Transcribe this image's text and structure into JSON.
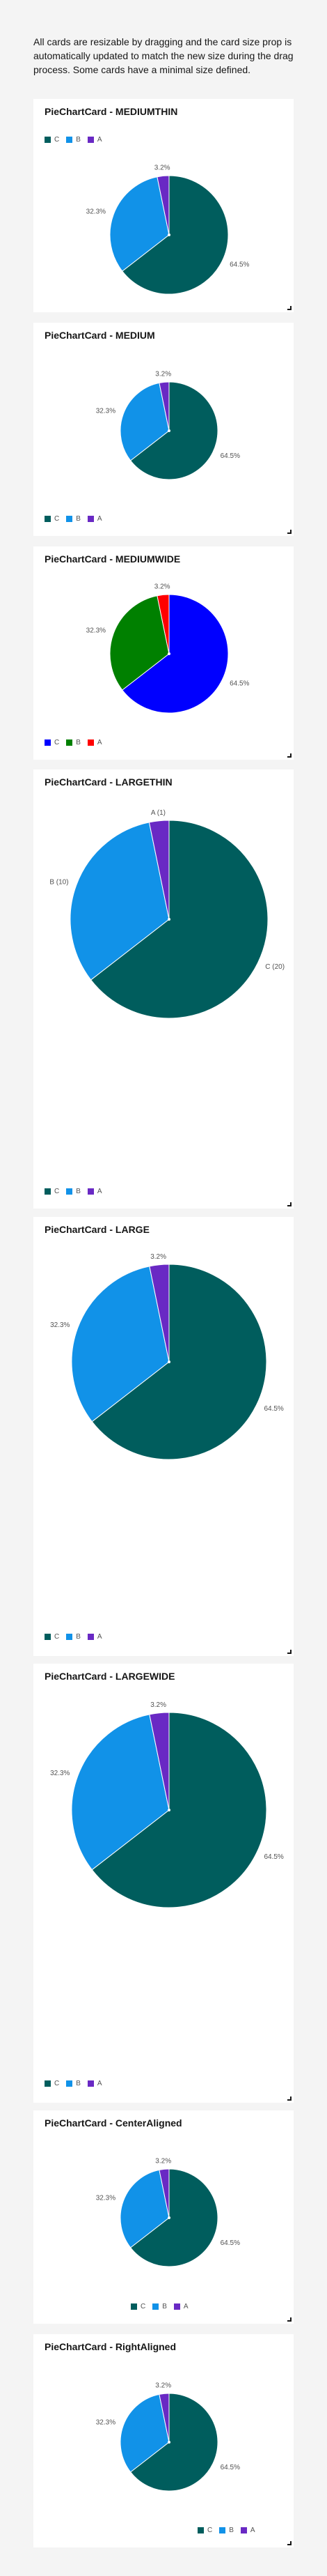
{
  "intro_text": "All cards are resizable by dragging and the card size prop is automatically updated to match the new size during the drag process. Some cards have a minimal size defined.",
  "colors": {
    "C": "#005d5d",
    "B": "#1192e8",
    "A": "#6929c4",
    "C_wide": "#0000ff",
    "B_wide": "#008000",
    "A_wide": "#ff0000"
  },
  "cards": [
    {
      "title": "PieChartCard - MEDIUMTHIN",
      "legend": [
        "C",
        "B",
        "A"
      ],
      "labels": [
        "64.5%",
        "32.3%",
        "3.2%"
      ]
    },
    {
      "title": "PieChartCard - MEDIUM",
      "legend": [
        "C",
        "B",
        "A"
      ],
      "labels": [
        "64.5%",
        "32.3%",
        "3.2%"
      ]
    },
    {
      "title": "PieChartCard - MEDIUMWIDE",
      "legend": [
        "C",
        "B",
        "A"
      ],
      "labels": [
        "64.5%",
        "32.3%",
        "3.2%"
      ]
    },
    {
      "title": "PieChartCard - LARGETHIN",
      "legend": [
        "C",
        "B",
        "A"
      ],
      "labels": [
        "C (20)",
        "B (10)",
        "A (1)"
      ]
    },
    {
      "title": "PieChartCard - LARGE",
      "legend": [
        "C",
        "B",
        "A"
      ],
      "labels": [
        "64.5%",
        "32.3%",
        "3.2%"
      ]
    },
    {
      "title": "PieChartCard - LARGEWIDE",
      "legend": [
        "C",
        "B",
        "A"
      ],
      "labels": [
        "64.5%",
        "32.3%",
        "3.2%"
      ]
    },
    {
      "title": "PieChartCard - CenterAligned",
      "legend": [
        "C",
        "B",
        "A"
      ],
      "labels": [
        "64.5%",
        "32.3%",
        "3.2%"
      ]
    },
    {
      "title": "PieChartCard - RightAligned",
      "legend": [
        "C",
        "B",
        "A"
      ],
      "labels": [
        "64.5%",
        "32.3%",
        "3.2%"
      ]
    }
  ],
  "chart_data": [
    {
      "type": "pie",
      "title": "PieChartCard - MEDIUMTHIN",
      "categories": [
        "C",
        "B",
        "A"
      ],
      "values": [
        20,
        10,
        1
      ],
      "legend": "bottom-left"
    },
    {
      "type": "pie",
      "title": "PieChartCard - MEDIUM",
      "categories": [
        "C",
        "B",
        "A"
      ],
      "values": [
        20,
        10,
        1
      ],
      "legend": "bottom-left"
    },
    {
      "type": "pie",
      "title": "PieChartCard - MEDIUMWIDE",
      "categories": [
        "C",
        "B",
        "A"
      ],
      "values": [
        20,
        10,
        1
      ],
      "legend": "bottom-left"
    },
    {
      "type": "pie",
      "title": "PieChartCard - LARGETHIN",
      "categories": [
        "C",
        "B",
        "A"
      ],
      "values": [
        20,
        10,
        1
      ],
      "legend": "bottom-left"
    },
    {
      "type": "pie",
      "title": "PieChartCard - LARGE",
      "categories": [
        "C",
        "B",
        "A"
      ],
      "values": [
        20,
        10,
        1
      ],
      "legend": "bottom-left"
    },
    {
      "type": "pie",
      "title": "PieChartCard - LARGEWIDE",
      "categories": [
        "C",
        "B",
        "A"
      ],
      "values": [
        20,
        10,
        1
      ],
      "legend": "bottom-left"
    },
    {
      "type": "pie",
      "title": "PieChartCard - CenterAligned",
      "categories": [
        "C",
        "B",
        "A"
      ],
      "values": [
        20,
        10,
        1
      ],
      "legend": "bottom-center"
    },
    {
      "type": "pie",
      "title": "PieChartCard - RightAligned",
      "categories": [
        "C",
        "B",
        "A"
      ],
      "values": [
        20,
        10,
        1
      ],
      "legend": "bottom-right"
    }
  ]
}
